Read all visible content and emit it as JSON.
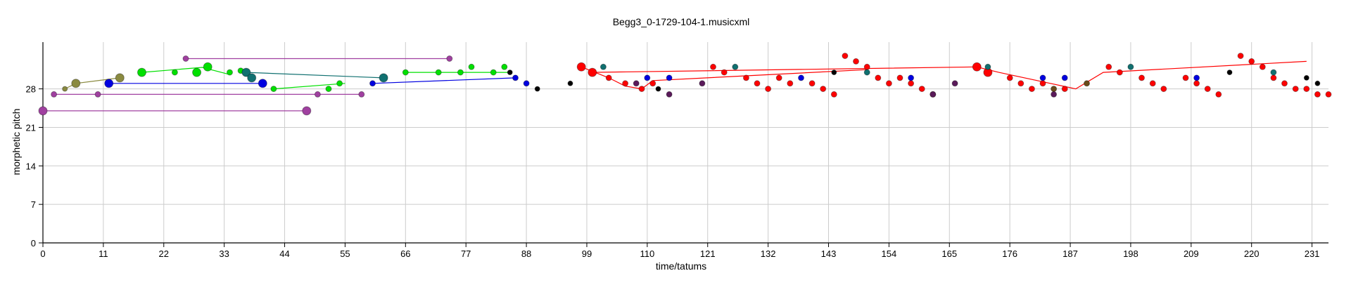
{
  "chart_data": {
    "type": "scatter",
    "title": "Begg3_0-1729-104-1.musicxml",
    "xlabel": "time/tatums",
    "ylabel": "morphetic pitch",
    "xlim": [
      0,
      234
    ],
    "ylim": [
      0,
      36.5
    ],
    "xticks": [
      0,
      11,
      22,
      33,
      44,
      55,
      66,
      77,
      88,
      99,
      110,
      121,
      132,
      143,
      154,
      165,
      176,
      187,
      198,
      209,
      220,
      231
    ],
    "yticks": [
      0,
      7,
      14,
      21,
      28
    ],
    "grid": true,
    "colors": {
      "purple": "#A040A0",
      "purple_dot": "#5A1A5A",
      "olive": "#8A8A40",
      "olive_dot": "#7A7A30",
      "blue": "#0000E0",
      "green": "#00E000",
      "teal": "#107070",
      "black": "#000000",
      "red": "#FF0000",
      "brown": "#6A4A1A",
      "grid": "#CCCCCC"
    },
    "series": [
      {
        "color": "purple",
        "lines": [
          [
            [
              0,
              24
            ],
            [
              48,
              24
            ]
          ]
        ],
        "points": [
          [
            0,
            24,
            6
          ],
          [
            48,
            24,
            6
          ]
        ]
      },
      {
        "color": "purple",
        "lines": [
          [
            [
              26,
              33.5
            ],
            [
              74,
              33.5
            ]
          ]
        ],
        "points": [
          [
            26,
            33.5,
            4
          ],
          [
            74,
            33.5,
            4
          ]
        ]
      },
      {
        "color": "purple",
        "lines": [
          [
            [
              2,
              27
            ],
            [
              58,
              27
            ]
          ]
        ],
        "points": [
          [
            2,
            27,
            4
          ],
          [
            10,
            27,
            4
          ],
          [
            50,
            27,
            4
          ],
          [
            58,
            27,
            4
          ]
        ]
      },
      {
        "color": "olive",
        "lines": [
          [
            [
              4,
              28
            ],
            [
              6,
              29
            ],
            [
              14,
              30
            ]
          ]
        ],
        "points": [
          [
            4,
            28,
            3.5
          ],
          [
            6,
            29,
            6
          ],
          [
            14,
            30,
            6
          ]
        ]
      },
      {
        "color": "blue",
        "lines": [
          [
            [
              12,
              29
            ],
            [
              40,
              29
            ]
          ]
        ],
        "points": [
          [
            12,
            29,
            6
          ],
          [
            40,
            29,
            6
          ]
        ]
      },
      {
        "color": "green",
        "lines": [
          [
            [
              18,
              31
            ],
            [
              29,
              31.9
            ],
            [
              34,
              30.6
            ]
          ],
          [
            [
              42,
              28
            ],
            [
              55,
              29
            ]
          ]
        ],
        "points": [
          [
            18,
            31,
            6
          ],
          [
            24,
            31,
            4
          ],
          [
            28,
            31,
            6
          ],
          [
            30,
            32,
            6
          ],
          [
            34,
            31,
            4
          ],
          [
            36,
            31.3,
            4
          ],
          [
            42,
            28,
            4
          ],
          [
            52,
            28,
            4
          ],
          [
            54,
            29,
            4
          ]
        ]
      },
      {
        "color": "teal",
        "lines": [
          [
            [
              37,
              31
            ],
            [
              62,
              30
            ]
          ]
        ],
        "points": [
          [
            37,
            31,
            6
          ],
          [
            38,
            30,
            6
          ],
          [
            62,
            30,
            6
          ]
        ]
      },
      {
        "color": "green",
        "lines": [
          [
            [
              66,
              31
            ],
            [
              85,
              31
            ]
          ]
        ],
        "points": [
          [
            66,
            31,
            4
          ],
          [
            72,
            31,
            4
          ],
          [
            76,
            31,
            4
          ],
          [
            78,
            32,
            4
          ],
          [
            82,
            31,
            4
          ],
          [
            84,
            32,
            4
          ]
        ]
      },
      {
        "color": "blue",
        "lines": [
          [
            [
              60,
              29
            ],
            [
              86,
              30
            ]
          ]
        ],
        "points": [
          [
            60,
            29,
            4
          ],
          [
            86,
            30,
            4
          ],
          [
            88,
            29,
            4
          ]
        ]
      },
      {
        "color": "black",
        "lines": [],
        "points": [
          [
            85,
            31,
            3.5
          ],
          [
            90,
            28,
            3.5
          ],
          [
            96,
            29,
            3.5
          ]
        ]
      },
      {
        "color": "red",
        "lines": [
          [
            [
              98,
              32
            ],
            [
              103,
              30
            ],
            [
              106,
              28.5
            ],
            [
              109,
              28
            ],
            [
              111,
              29.5
            ],
            [
              150,
              31.5
            ]
          ],
          [
            [
              100,
              31
            ],
            [
              170,
              32
            ],
            [
              174,
              31
            ],
            [
              188,
              28
            ],
            [
              193,
              31
            ],
            [
              230,
              33
            ]
          ]
        ],
        "points": [
          [
            98,
            32,
            6
          ],
          [
            100,
            31,
            6
          ],
          [
            103,
            30,
            4
          ],
          [
            106,
            29,
            4
          ],
          [
            109,
            28,
            4
          ],
          [
            111,
            29,
            4
          ],
          [
            122,
            32,
            4
          ],
          [
            124,
            31,
            4
          ],
          [
            128,
            30,
            4
          ],
          [
            130,
            29,
            4
          ],
          [
            132,
            28,
            4
          ],
          [
            134,
            30,
            4
          ],
          [
            136,
            29,
            4
          ],
          [
            140,
            29,
            4
          ],
          [
            142,
            28,
            4
          ],
          [
            144,
            27,
            4
          ],
          [
            146,
            34,
            4
          ],
          [
            148,
            33,
            4
          ],
          [
            150,
            32,
            4
          ],
          [
            152,
            30,
            4
          ],
          [
            154,
            29,
            4
          ],
          [
            156,
            30,
            4
          ],
          [
            158,
            29,
            4
          ],
          [
            160,
            28,
            4
          ],
          [
            162,
            27,
            4
          ],
          [
            170,
            32,
            6
          ],
          [
            172,
            31,
            6
          ],
          [
            176,
            30,
            4
          ],
          [
            178,
            29,
            4
          ],
          [
            180,
            28,
            4
          ],
          [
            182,
            29,
            4
          ],
          [
            186,
            28,
            4
          ],
          [
            194,
            32,
            4
          ],
          [
            196,
            31,
            4
          ],
          [
            200,
            30,
            4
          ],
          [
            202,
            29,
            4
          ],
          [
            204,
            28,
            4
          ],
          [
            208,
            30,
            4
          ],
          [
            210,
            29,
            4
          ],
          [
            212,
            28,
            4
          ],
          [
            214,
            27,
            4
          ],
          [
            218,
            34,
            4
          ],
          [
            220,
            33,
            4
          ],
          [
            222,
            32,
            4
          ],
          [
            224,
            30,
            4
          ],
          [
            226,
            29,
            4
          ],
          [
            228,
            28,
            4
          ],
          [
            230,
            28,
            4
          ],
          [
            232,
            27,
            4
          ],
          [
            234,
            27,
            4
          ]
        ]
      },
      {
        "color": "teal",
        "lines": [],
        "points": [
          [
            102,
            32,
            4
          ],
          [
            126,
            32,
            4
          ],
          [
            150,
            31,
            4
          ],
          [
            172,
            32,
            4
          ],
          [
            198,
            32,
            4
          ],
          [
            224,
            31,
            4
          ]
        ]
      },
      {
        "color": "blue",
        "lines": [],
        "points": [
          [
            110,
            30,
            4
          ],
          [
            114,
            30,
            4
          ],
          [
            138,
            30,
            4
          ],
          [
            158,
            30,
            4
          ],
          [
            182,
            30,
            4
          ],
          [
            186,
            30,
            4
          ],
          [
            210,
            30,
            4
          ]
        ]
      },
      {
        "color": "black",
        "lines": [],
        "points": [
          [
            112,
            28,
            3.5
          ],
          [
            144,
            31,
            3.5
          ],
          [
            216,
            31,
            3.5
          ],
          [
            230,
            30,
            3.5
          ],
          [
            232,
            29,
            3.5
          ]
        ]
      },
      {
        "color": "purple_dot",
        "lines": [],
        "points": [
          [
            108,
            29,
            4
          ],
          [
            114,
            27,
            4
          ],
          [
            120,
            29,
            4
          ],
          [
            162,
            27,
            4
          ],
          [
            166,
            29,
            4
          ],
          [
            184,
            27,
            4
          ]
        ]
      },
      {
        "color": "brown",
        "lines": [],
        "points": [
          [
            184,
            28,
            4
          ],
          [
            190,
            29,
            4
          ]
        ]
      }
    ]
  }
}
